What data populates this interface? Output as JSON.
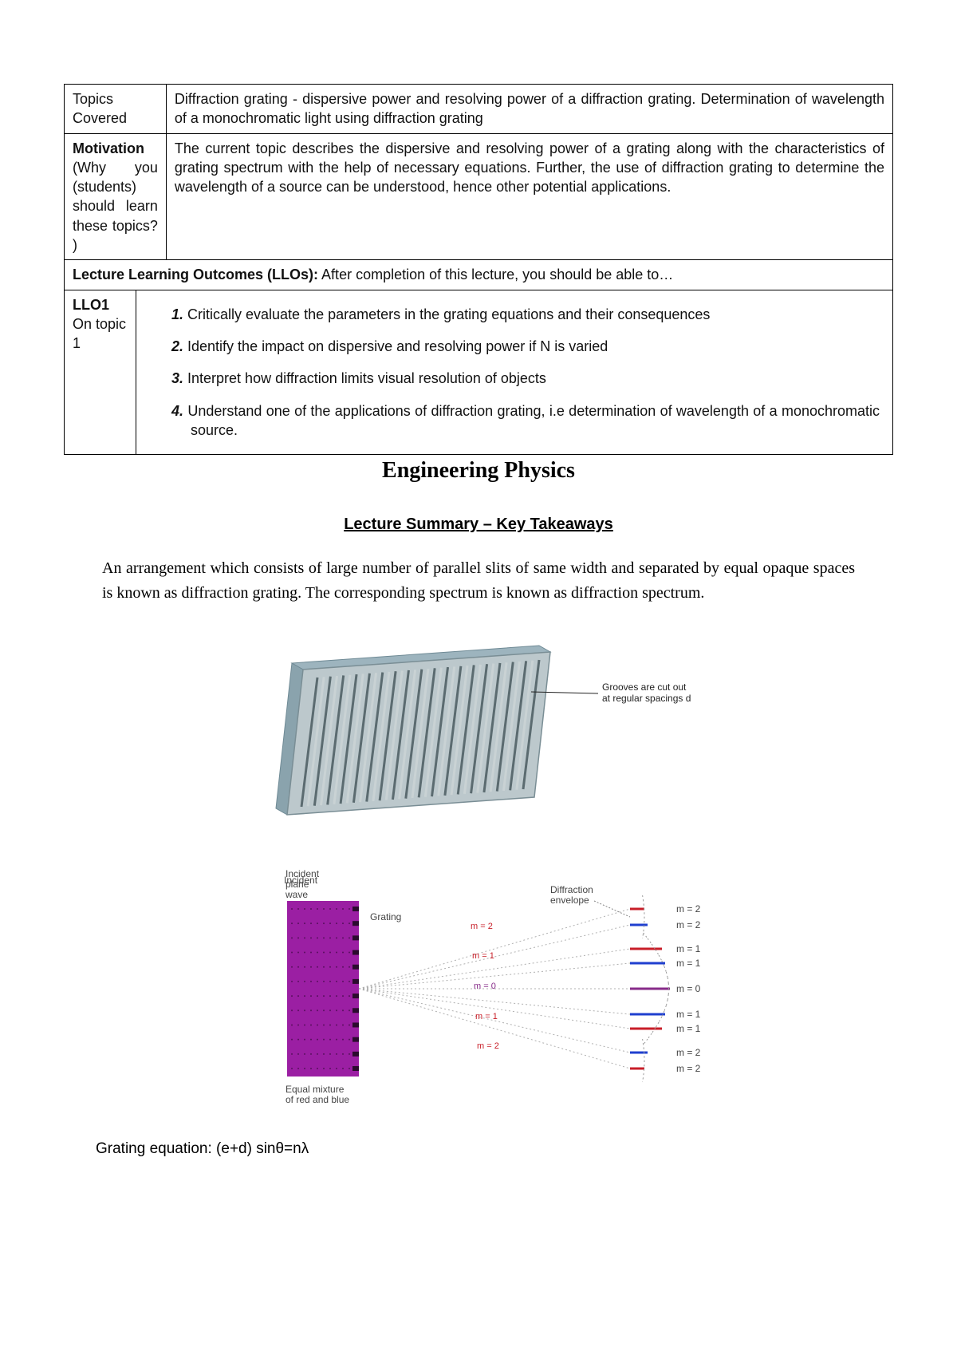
{
  "table": {
    "topics_label": "Topics Covered",
    "topics_text": "Diffraction grating - dispersive power and resolving power of a diffraction grating. Determination of wavelength of a monochromatic light using diffraction grating",
    "motivation_label": "Motivation",
    "motivation_sub": "(Why you (students) should learn these topics? )",
    "motivation_text": "The current topic describes the dispersive and resolving power of a grating along with the characteristics of grating spectrum with the help of necessary equations. Further, the use of diffraction grating to determine the wavelength of a source can be understood, hence other potential applications.",
    "llos_intro_bold": "Lecture Learning Outcomes (LLOs):",
    "llos_intro_rest": " After completion of this lecture, you should be able to…",
    "llo_cell_label1": "LLO1",
    "llo_cell_label2": "On topic 1",
    "items": [
      "Critically evaluate the parameters in the grating equations and their consequences",
      "Identify the impact on dispersive and resolving power if N is varied",
      "Interpret how diffraction limits visual resolution of objects",
      "Understand one of the applications of diffraction grating, i.e determination of wavelength of a monochromatic source."
    ]
  },
  "title": "Engineering Physics",
  "subtitle": "Lecture Summary – Key Takeaways",
  "paragraph": "An arrangement which consists of large number of parallel slits of same width and separated by equal opaque spaces is known as diffraction grating. The corresponding spectrum is known as diffraction spectrum.",
  "grating_fig": {
    "annotation": "Grooves are cut out at regular spacings d",
    "frame_color": "#9db4be",
    "face_color": "#bcc8cc",
    "groove_dark": "#5b6b70",
    "groove_light": "#c9d2d4",
    "line_color": "#222"
  },
  "diffraction_fig": {
    "labels": {
      "incident": "Incident plane wave",
      "grating": "Grating",
      "equal_mix": "Equal mixture of red and blue",
      "envelope": "Diffraction envelope"
    },
    "orders": [
      "m = 2",
      "m = 2",
      "m = 1",
      "m = 1",
      "m = 0",
      "m = 1",
      "m = 1",
      "m = 2",
      "m = 2"
    ],
    "inner_order_labels": [
      "m = 2",
      "m = 1",
      "m = 0",
      "m = 1",
      "m = 2"
    ],
    "colors": {
      "grating_fill": "#9b1fa3",
      "grating_dots": "#2b0b2e",
      "red": "#c81e28",
      "blue": "#1f3fcf",
      "mixed": "#872b89",
      "envelope": "#999999",
      "text": "#444444"
    }
  },
  "equation": "Grating equation: (e+d) sinθ=nλ"
}
